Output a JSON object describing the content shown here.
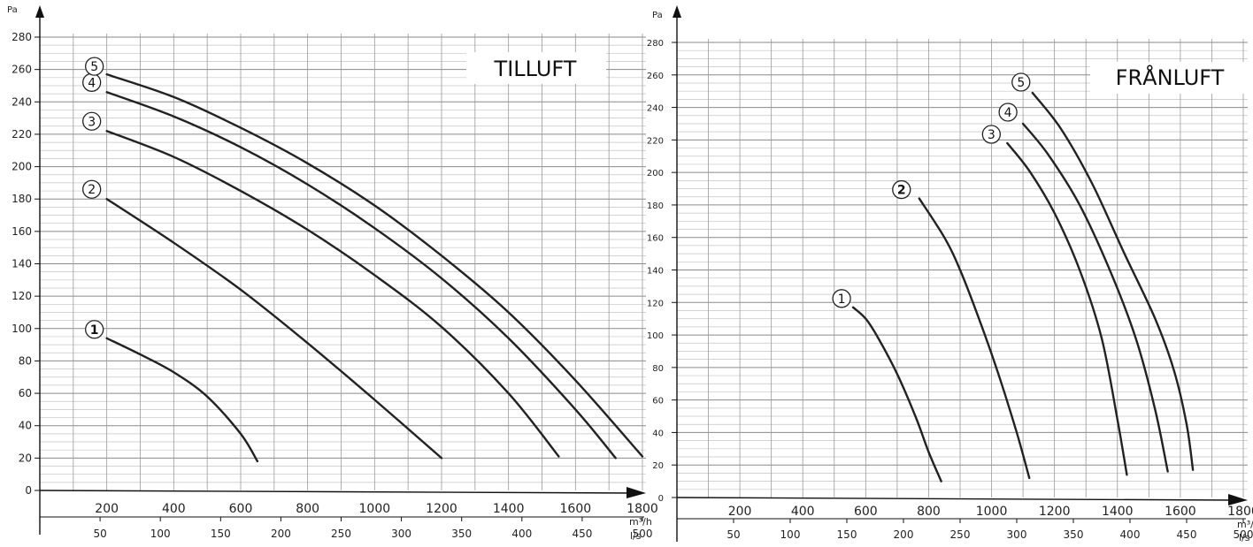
{
  "chart_data": [
    {
      "type": "line",
      "title": "TILLUFT",
      "ylabel": "Pa",
      "ylim": [
        0,
        280
      ],
      "yticks": [
        0,
        20,
        40,
        60,
        80,
        100,
        120,
        140,
        160,
        180,
        200,
        220,
        240,
        260,
        280
      ],
      "xlabel": "m³/h",
      "xlim": [
        0,
        1800
      ],
      "xticks": [
        200,
        400,
        600,
        800,
        1000,
        1200,
        1400,
        1600,
        1800
      ],
      "x2label": "l/s",
      "x2ticks": [
        50,
        100,
        150,
        200,
        250,
        300,
        350,
        400,
        450,
        500
      ],
      "grid": true,
      "series": [
        {
          "name": "1",
          "label_bold": true,
          "points": [
            [
              200,
              94
            ],
            [
              300,
              84
            ],
            [
              400,
              73
            ],
            [
              500,
              58
            ],
            [
              600,
              35
            ],
            [
              650,
              18
            ]
          ]
        },
        {
          "name": "2",
          "label_bold": false,
          "points": [
            [
              200,
              180
            ],
            [
              400,
              153
            ],
            [
              600,
              124
            ],
            [
              800,
              91
            ],
            [
              1000,
              56
            ],
            [
              1200,
              20
            ]
          ]
        },
        {
          "name": "3",
          "label_bold": false,
          "points": [
            [
              200,
              222
            ],
            [
              400,
              206
            ],
            [
              600,
              185
            ],
            [
              800,
              161
            ],
            [
              1000,
              133
            ],
            [
              1200,
              101
            ],
            [
              1400,
              60
            ],
            [
              1550,
              21
            ]
          ]
        },
        {
          "name": "4",
          "label_bold": false,
          "points": [
            [
              200,
              246
            ],
            [
              400,
              231
            ],
            [
              600,
              212
            ],
            [
              800,
              189
            ],
            [
              1000,
              162
            ],
            [
              1200,
              131
            ],
            [
              1400,
              94
            ],
            [
              1600,
              50
            ],
            [
              1720,
              20
            ]
          ]
        },
        {
          "name": "5",
          "label_bold": false,
          "points": [
            [
              200,
              257
            ],
            [
              400,
              243
            ],
            [
              600,
              224
            ],
            [
              800,
              202
            ],
            [
              1000,
              176
            ],
            [
              1200,
              145
            ],
            [
              1400,
              110
            ],
            [
              1600,
              68
            ],
            [
              1800,
              21
            ]
          ]
        }
      ]
    },
    {
      "type": "line",
      "title": "FRÅNLUFT",
      "ylabel": "Pa",
      "ylim": [
        0,
        280
      ],
      "yticks": [
        0,
        20,
        40,
        60,
        80,
        100,
        120,
        140,
        160,
        180,
        200,
        220,
        240,
        260,
        280
      ],
      "xlabel": "m³/h",
      "xlim": [
        0,
        1800
      ],
      "xticks": [
        200,
        400,
        600,
        800,
        1000,
        1200,
        1400,
        1600,
        1800
      ],
      "x2label": "l/s",
      "x2ticks": [
        50,
        100,
        150,
        200,
        250,
        300,
        350,
        400,
        450,
        500
      ],
      "grid": true,
      "series": [
        {
          "name": "1",
          "label_bold": false,
          "points": [
            [
              560,
              117
            ],
            [
              600,
              110
            ],
            [
              640,
              98
            ],
            [
              700,
              76
            ],
            [
              760,
              49
            ],
            [
              800,
              28
            ],
            [
              840,
              10
            ]
          ]
        },
        {
          "name": "2",
          "label_bold": true,
          "points": [
            [
              770,
              184
            ],
            [
              850,
              160
            ],
            [
              900,
              140
            ],
            [
              960,
              110
            ],
            [
              1020,
              77
            ],
            [
              1080,
              40
            ],
            [
              1120,
              12
            ]
          ]
        },
        {
          "name": "3",
          "label_bold": false,
          "points": [
            [
              1050,
              218
            ],
            [
              1120,
              201
            ],
            [
              1200,
              175
            ],
            [
              1280,
              140
            ],
            [
              1350,
              98
            ],
            [
              1400,
              48
            ],
            [
              1430,
              14
            ]
          ]
        },
        {
          "name": "4",
          "label_bold": false,
          "points": [
            [
              1100,
              230
            ],
            [
              1180,
              211
            ],
            [
              1280,
              180
            ],
            [
              1380,
              138
            ],
            [
              1460,
              97
            ],
            [
              1520,
              54
            ],
            [
              1560,
              16
            ]
          ]
        },
        {
          "name": "5",
          "label_bold": false,
          "points": [
            [
              1130,
              249
            ],
            [
              1220,
              227
            ],
            [
              1320,
              193
            ],
            [
              1420,
              151
            ],
            [
              1520,
              110
            ],
            [
              1580,
              78
            ],
            [
              1620,
              45
            ],
            [
              1640,
              17
            ]
          ]
        }
      ]
    }
  ]
}
